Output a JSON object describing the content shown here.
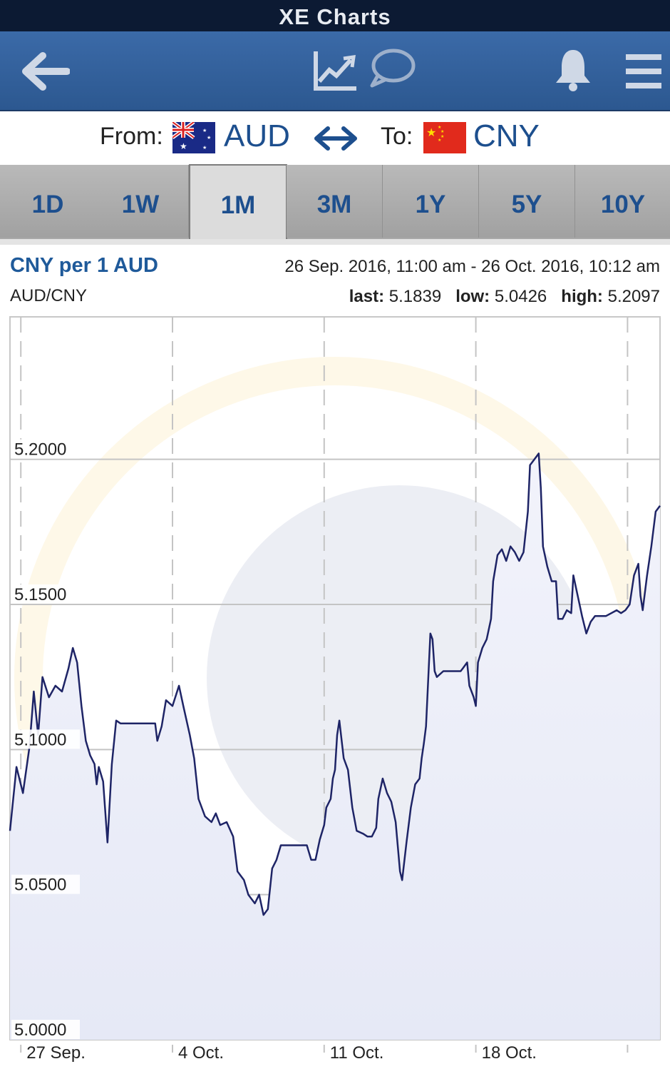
{
  "app_title": "XE Charts",
  "toolbar": {
    "icons": [
      "back-arrow-icon",
      "chart-icon",
      "comment-icon",
      "bell-icon",
      "menu-icon"
    ]
  },
  "conversion": {
    "from_label": "From:",
    "from_code": "AUD",
    "from_flag": "australia-flag-icon",
    "to_label": "To:",
    "to_code": "CNY",
    "to_flag": "china-flag-icon"
  },
  "tabs": [
    {
      "label": "1D",
      "active": false
    },
    {
      "label": "1W",
      "active": false
    },
    {
      "label": "1M",
      "active": true
    },
    {
      "label": "3M",
      "active": false
    },
    {
      "label": "1Y",
      "active": false
    },
    {
      "label": "5Y",
      "active": false
    },
    {
      "label": "10Y",
      "active": false
    }
  ],
  "header": {
    "title": "CNY per 1 AUD",
    "pair": "AUD/CNY",
    "range": "26 Sep. 2016, 11:00 am - 26 Oct. 2016, 10:12 am",
    "last_label": "last:",
    "last_value": "5.1839",
    "low_label": "low:",
    "low_value": "5.0426",
    "high_label": "high:",
    "high_value": "5.2097"
  },
  "colors": {
    "navbar": "#2f5d97",
    "accent": "#1f5a9a",
    "line": "#1e2466",
    "fill": "#e9ecf8"
  },
  "chart_data": {
    "type": "line",
    "series_name": "AUD/CNY",
    "ylim": [
      5.0,
      5.2491
    ],
    "yticks": [
      "5.2000",
      "5.1500",
      "5.1000",
      "5.0500",
      "5.0000"
    ],
    "ytick_values": [
      5.2,
      5.15,
      5.1,
      5.05,
      5.0
    ],
    "xlim": [
      0,
      30
    ],
    "xticks": [
      {
        "label": "27 Sep.",
        "day": 0.5
      },
      {
        "label": "4 Oct.",
        "day": 7.5
      },
      {
        "label": "11 Oct.",
        "day": 14.5
      },
      {
        "label": "18 Oct.",
        "day": 21.5
      }
    ],
    "grid": true,
    "points": [
      [
        0,
        5.072
      ],
      [
        0.3,
        5.094
      ],
      [
        0.6,
        5.085
      ],
      [
        0.9,
        5.101
      ],
      [
        1.1,
        5.12
      ],
      [
        1.3,
        5.105
      ],
      [
        1.5,
        5.125
      ],
      [
        1.8,
        5.118
      ],
      [
        2.1,
        5.122
      ],
      [
        2.4,
        5.12
      ],
      [
        2.7,
        5.128
      ],
      [
        2.9,
        5.135
      ],
      [
        3.1,
        5.13
      ],
      [
        3.3,
        5.115
      ],
      [
        3.5,
        5.103
      ],
      [
        3.7,
        5.098
      ],
      [
        3.9,
        5.095
      ],
      [
        4.0,
        5.088
      ],
      [
        4.1,
        5.094
      ],
      [
        4.3,
        5.089
      ],
      [
        4.5,
        5.068
      ],
      [
        4.7,
        5.095
      ],
      [
        4.9,
        5.11
      ],
      [
        5.1,
        5.109
      ],
      [
        5.3,
        5.109
      ],
      [
        6.0,
        5.109
      ],
      [
        6.7,
        5.109
      ],
      [
        6.8,
        5.103
      ],
      [
        7.0,
        5.108
      ],
      [
        7.2,
        5.117
      ],
      [
        7.5,
        5.115
      ],
      [
        7.8,
        5.122
      ],
      [
        8.0,
        5.115
      ],
      [
        8.3,
        5.105
      ],
      [
        8.5,
        5.097
      ],
      [
        8.7,
        5.083
      ],
      [
        9.0,
        5.077
      ],
      [
        9.3,
        5.075
      ],
      [
        9.5,
        5.078
      ],
      [
        9.7,
        5.074
      ],
      [
        10.0,
        5.075
      ],
      [
        10.3,
        5.07
      ],
      [
        10.5,
        5.058
      ],
      [
        10.8,
        5.055
      ],
      [
        11.0,
        5.05
      ],
      [
        11.3,
        5.047
      ],
      [
        11.5,
        5.05
      ],
      [
        11.7,
        5.043
      ],
      [
        11.9,
        5.045
      ],
      [
        12.1,
        5.059
      ],
      [
        12.3,
        5.062
      ],
      [
        12.5,
        5.067
      ],
      [
        13.0,
        5.067
      ],
      [
        13.5,
        5.067
      ],
      [
        13.7,
        5.067
      ],
      [
        13.9,
        5.062
      ],
      [
        14.1,
        5.062
      ],
      [
        14.3,
        5.069
      ],
      [
        14.5,
        5.074
      ],
      [
        14.6,
        5.08
      ],
      [
        14.8,
        5.083
      ],
      [
        14.9,
        5.09
      ],
      [
        15.0,
        5.093
      ],
      [
        15.1,
        5.105
      ],
      [
        15.2,
        5.11
      ],
      [
        15.4,
        5.097
      ],
      [
        15.6,
        5.093
      ],
      [
        15.8,
        5.08
      ],
      [
        16.0,
        5.072
      ],
      [
        16.3,
        5.071
      ],
      [
        16.5,
        5.07
      ],
      [
        16.7,
        5.07
      ],
      [
        16.9,
        5.073
      ],
      [
        17.0,
        5.083
      ],
      [
        17.2,
        5.09
      ],
      [
        17.4,
        5.085
      ],
      [
        17.6,
        5.082
      ],
      [
        17.8,
        5.075
      ],
      [
        18.0,
        5.058
      ],
      [
        18.1,
        5.055
      ],
      [
        18.3,
        5.068
      ],
      [
        18.5,
        5.08
      ],
      [
        18.7,
        5.088
      ],
      [
        18.9,
        5.09
      ],
      [
        19.0,
        5.097
      ],
      [
        19.1,
        5.102
      ],
      [
        19.2,
        5.108
      ],
      [
        19.4,
        5.14
      ],
      [
        19.5,
        5.138
      ],
      [
        19.6,
        5.127
      ],
      [
        19.7,
        5.125
      ],
      [
        20.0,
        5.127
      ],
      [
        20.5,
        5.127
      ],
      [
        20.8,
        5.127
      ],
      [
        20.9,
        5.128
      ],
      [
        21.1,
        5.13
      ],
      [
        21.2,
        5.122
      ],
      [
        21.4,
        5.118
      ],
      [
        21.5,
        5.115
      ],
      [
        21.6,
        5.13
      ],
      [
        21.8,
        5.135
      ],
      [
        22.0,
        5.138
      ],
      [
        22.2,
        5.145
      ],
      [
        22.3,
        5.158
      ],
      [
        22.5,
        5.167
      ],
      [
        22.7,
        5.169
      ],
      [
        22.9,
        5.165
      ],
      [
        23.1,
        5.17
      ],
      [
        23.3,
        5.168
      ],
      [
        23.5,
        5.165
      ],
      [
        23.7,
        5.168
      ],
      [
        23.9,
        5.182
      ],
      [
        24.0,
        5.198
      ],
      [
        24.2,
        5.2
      ],
      [
        24.4,
        5.202
      ],
      [
        24.5,
        5.19
      ],
      [
        24.6,
        5.17
      ],
      [
        24.8,
        5.163
      ],
      [
        25.0,
        5.158
      ],
      [
        25.2,
        5.158
      ],
      [
        25.3,
        5.145
      ],
      [
        25.5,
        5.145
      ],
      [
        25.7,
        5.148
      ],
      [
        25.9,
        5.147
      ],
      [
        26.0,
        5.16
      ],
      [
        26.2,
        5.153
      ],
      [
        26.4,
        5.146
      ],
      [
        26.6,
        5.14
      ],
      [
        26.8,
        5.144
      ],
      [
        27.0,
        5.146
      ],
      [
        27.5,
        5.146
      ],
      [
        28.0,
        5.148
      ],
      [
        28.2,
        5.147
      ],
      [
        28.4,
        5.148
      ],
      [
        28.6,
        5.15
      ],
      [
        28.8,
        5.16
      ],
      [
        29.0,
        5.164
      ],
      [
        29.1,
        5.153
      ],
      [
        29.2,
        5.148
      ],
      [
        29.4,
        5.16
      ],
      [
        29.6,
        5.17
      ],
      [
        29.8,
        5.182
      ],
      [
        30.0,
        5.184
      ]
    ]
  }
}
